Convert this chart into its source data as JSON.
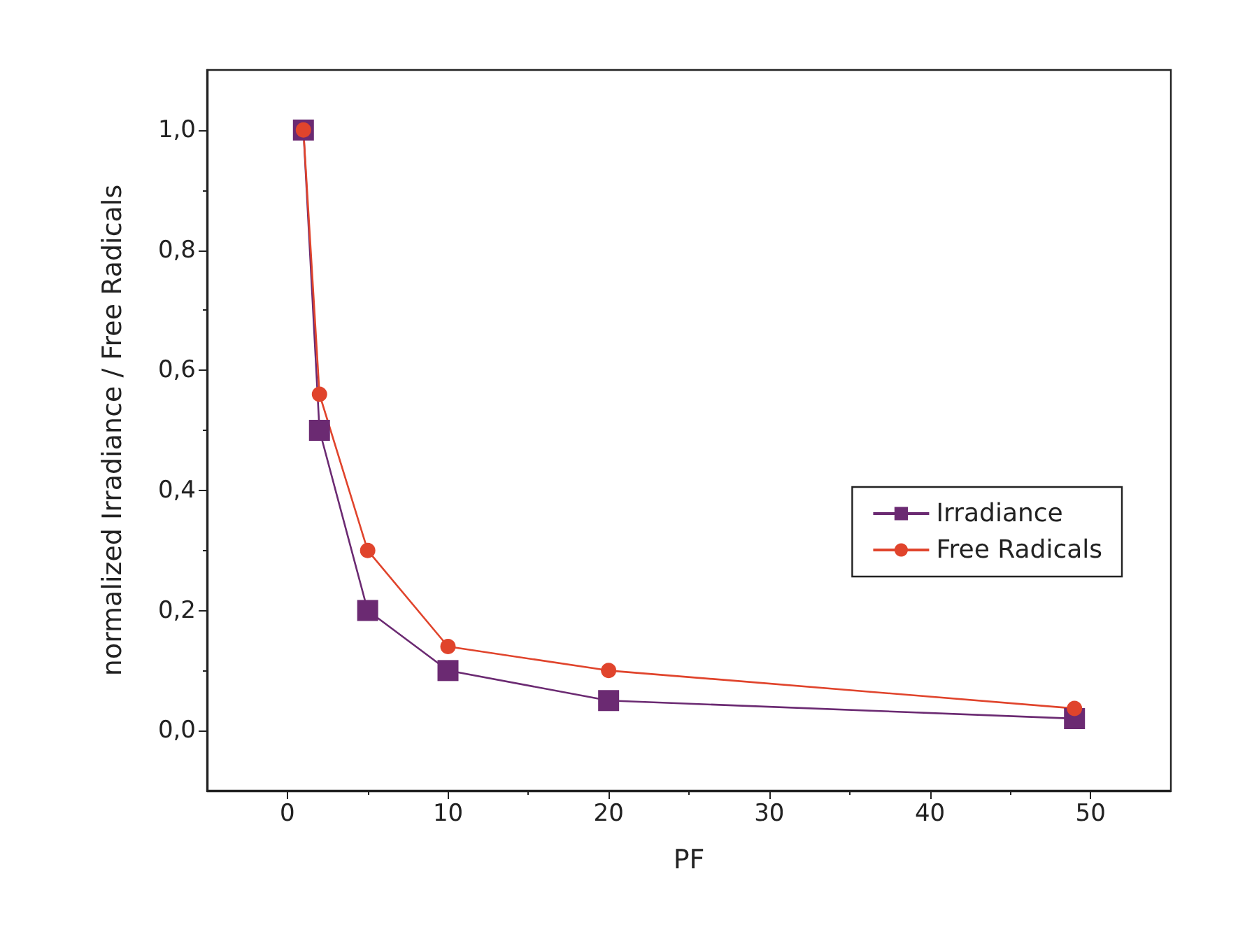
{
  "chart_data": {
    "type": "line",
    "xlabel": "PF",
    "ylabel": "normalized Irradiance / Free Radicals",
    "xlim": [
      -5,
      55
    ],
    "xticks": [
      0,
      10,
      20,
      30,
      40,
      50
    ],
    "ylim": [
      -0.1,
      1.1
    ],
    "yticks": [
      {
        "value": 0,
        "label": "0,0"
      },
      {
        "value": 0.2,
        "label": "0,2"
      },
      {
        "value": 0.4,
        "label": "0,4"
      },
      {
        "value": 0.6,
        "label": "0,6"
      },
      {
        "value": 0.8,
        "label": "0,8"
      },
      {
        "value": 1.0,
        "label": "1,0"
      }
    ],
    "x": [
      1,
      2,
      5,
      10,
      20,
      49
    ],
    "series": [
      {
        "name": "Irradiance",
        "color": "#6b2a72",
        "marker": "square",
        "values": [
          1.0,
          0.5,
          0.2,
          0.1,
          0.05,
          0.02
        ]
      },
      {
        "name": "Free Radicals",
        "color": "#e0442c",
        "marker": "circle",
        "values": [
          1.0,
          0.56,
          0.3,
          0.14,
          0.1,
          0.037
        ]
      }
    ],
    "legend": "right",
    "grid": false,
    "line_style": "solid"
  }
}
